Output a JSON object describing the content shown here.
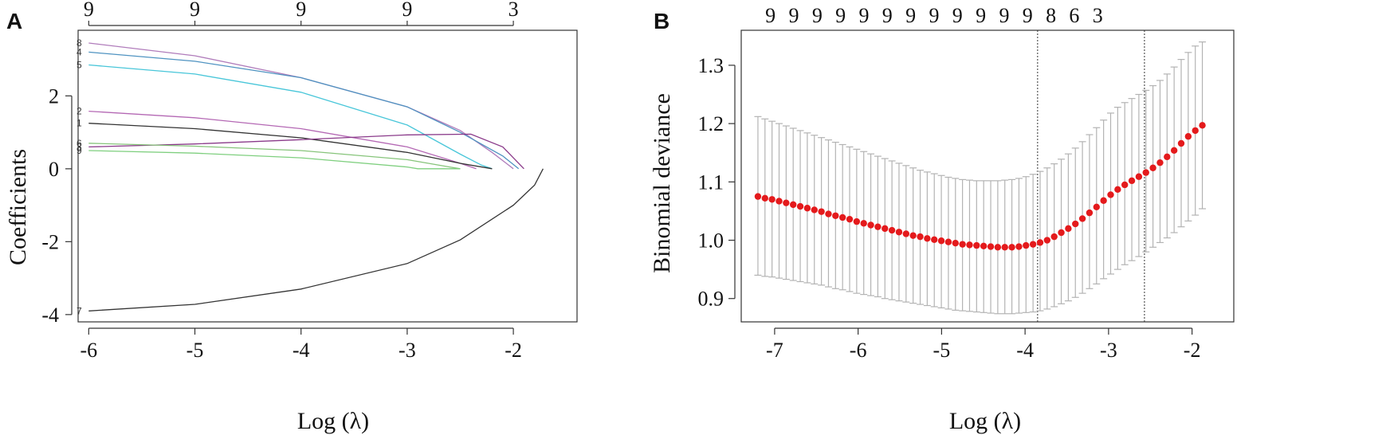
{
  "chart_data": [
    {
      "panel": "A",
      "type": "line",
      "title": "",
      "xlabel": "Log (λ)",
      "ylabel": "Coefficients",
      "xlim": [
        -6.1,
        -1.4
      ],
      "ylim": [
        -4.2,
        3.8
      ],
      "x_ticks": [
        "-6",
        "-5",
        "-4",
        "-3",
        "-2"
      ],
      "x_tick_values": [
        -6,
        -5,
        -4,
        -3,
        -2
      ],
      "y_ticks": [
        "-4",
        "-2",
        "0",
        "2"
      ],
      "y_tick_values": [
        -4,
        -2,
        0,
        2
      ],
      "top_axis": {
        "labels": [
          "9",
          "9",
          "9",
          "9",
          "3"
        ],
        "values": [
          -6,
          -5,
          -4,
          -3,
          -2
        ]
      },
      "series": [
        {
          "name": "8",
          "color": "#b07cbb",
          "x": [
            -6,
            -5,
            -4,
            -3,
            -2.5,
            -2.2,
            -2.0
          ],
          "y": [
            3.45,
            3.1,
            2.5,
            1.7,
            1.05,
            0.45,
            0
          ]
        },
        {
          "name": "4",
          "color": "#4f93c1",
          "x": [
            -6,
            -5,
            -4,
            -3,
            -2.5,
            -2.1,
            -1.95
          ],
          "y": [
            3.2,
            2.95,
            2.5,
            1.7,
            1.0,
            0.35,
            0
          ]
        },
        {
          "name": "5",
          "color": "#48c6d9",
          "x": [
            -6,
            -5,
            -4,
            -3,
            -2.5,
            -2.3,
            -2.2
          ],
          "y": [
            2.85,
            2.6,
            2.1,
            1.2,
            0.4,
            0.1,
            0
          ]
        },
        {
          "name": "2",
          "color": "#b468b4",
          "x": [
            -6,
            -5,
            -4,
            -3,
            -2.5,
            -2.35
          ],
          "y": [
            1.58,
            1.4,
            1.1,
            0.6,
            0.15,
            0
          ]
        },
        {
          "name": "1",
          "color": "#333333",
          "x": [
            -6,
            -5,
            -4,
            -3,
            -2.5,
            -2.2
          ],
          "y": [
            1.25,
            1.1,
            0.85,
            0.45,
            0.15,
            0
          ]
        },
        {
          "name": "3",
          "color": "#8a3a8a",
          "x": [
            -6,
            -5,
            -4,
            -3,
            -2.4,
            -2.1,
            -1.9
          ],
          "y": [
            0.6,
            0.68,
            0.8,
            0.93,
            0.95,
            0.6,
            0
          ]
        },
        {
          "name": "6",
          "color": "#86c47a",
          "x": [
            -6,
            -5,
            -4,
            -3,
            -2.6,
            -2.5
          ],
          "y": [
            0.7,
            0.62,
            0.5,
            0.25,
            0.05,
            0
          ]
        },
        {
          "name": "9",
          "color": "#7fcf7f",
          "x": [
            -6,
            -5,
            -4,
            -3,
            -2.9,
            -2.5
          ],
          "y": [
            0.5,
            0.43,
            0.3,
            0.05,
            0,
            0
          ]
        },
        {
          "name": "7",
          "color": "#333333",
          "x": [
            -6,
            -5,
            -4,
            -3,
            -2.5,
            -2.0,
            -1.8,
            -1.72
          ],
          "y": [
            -3.9,
            -3.72,
            -3.3,
            -2.6,
            -1.95,
            -1.0,
            -0.45,
            0
          ]
        }
      ]
    },
    {
      "panel": "B",
      "type": "scatter",
      "title": "",
      "xlabel": "Log (λ)",
      "ylabel": "Binomial deviance",
      "xlim": [
        -7.4,
        -1.5
      ],
      "ylim": [
        0.86,
        1.36
      ],
      "x_ticks": [
        "-7",
        "-6",
        "-5",
        "-4",
        "-3",
        "-2"
      ],
      "x_tick_values": [
        -7,
        -6,
        -5,
        -4,
        -3,
        -2
      ],
      "y_ticks": [
        "0.9",
        "1.0",
        "1.1",
        "1.2",
        "1.3"
      ],
      "y_tick_values": [
        0.9,
        1.0,
        1.1,
        1.2,
        1.3
      ],
      "top_axis": {
        "labels": [
          "9",
          "9",
          "9",
          "9",
          "9",
          "9",
          "9",
          "9",
          "9",
          "9",
          "9",
          "9",
          "8",
          "6",
          "3"
        ],
        "values": [
          -7.05,
          -6.77,
          -6.49,
          -6.21,
          -5.93,
          -5.65,
          -5.37,
          -5.09,
          -4.81,
          -4.53,
          -4.25,
          -3.97,
          -3.69,
          -3.41,
          -3.13
        ]
      },
      "vlines": [
        -3.85,
        -2.57
      ],
      "point_color": "#e41a1c",
      "errorbar_color": "#b3b3b3",
      "x_start": -7.2,
      "x_step": 0.0845,
      "mean": [
        1.075,
        1.072,
        1.07,
        1.067,
        1.064,
        1.061,
        1.058,
        1.055,
        1.052,
        1.049,
        1.045,
        1.042,
        1.039,
        1.036,
        1.032,
        1.029,
        1.026,
        1.023,
        1.02,
        1.017,
        1.014,
        1.011,
        1.008,
        1.006,
        1.003,
        1.001,
        0.999,
        0.997,
        0.995,
        0.993,
        0.992,
        0.991,
        0.99,
        0.989,
        0.988,
        0.988,
        0.988,
        0.989,
        0.991,
        0.993,
        0.996,
        1.0,
        1.006,
        1.013,
        1.02,
        1.028,
        1.037,
        1.047,
        1.057,
        1.068,
        1.078,
        1.087,
        1.095,
        1.102,
        1.109,
        1.116,
        1.124,
        1.133,
        1.143,
        1.154,
        1.166,
        1.178,
        1.188,
        1.197
      ],
      "upper": [
        1.212,
        1.208,
        1.204,
        1.2,
        1.196,
        1.192,
        1.188,
        1.184,
        1.18,
        1.176,
        1.172,
        1.168,
        1.164,
        1.16,
        1.156,
        1.152,
        1.148,
        1.144,
        1.14,
        1.136,
        1.132,
        1.128,
        1.124,
        1.12,
        1.117,
        1.114,
        1.111,
        1.108,
        1.106,
        1.104,
        1.103,
        1.102,
        1.102,
        1.102,
        1.102,
        1.103,
        1.104,
        1.106,
        1.109,
        1.113,
        1.118,
        1.124,
        1.131,
        1.139,
        1.148,
        1.158,
        1.169,
        1.181,
        1.193,
        1.206,
        1.218,
        1.228,
        1.236,
        1.243,
        1.25,
        1.257,
        1.265,
        1.274,
        1.285,
        1.297,
        1.31,
        1.322,
        1.333,
        1.34
      ],
      "lower": [
        0.94,
        0.938,
        0.937,
        0.935,
        0.933,
        0.931,
        0.929,
        0.927,
        0.925,
        0.923,
        0.92,
        0.917,
        0.915,
        0.912,
        0.909,
        0.907,
        0.905,
        0.903,
        0.9,
        0.898,
        0.896,
        0.894,
        0.892,
        0.89,
        0.888,
        0.886,
        0.884,
        0.882,
        0.88,
        0.879,
        0.878,
        0.877,
        0.876,
        0.875,
        0.874,
        0.874,
        0.874,
        0.875,
        0.876,
        0.877,
        0.879,
        0.882,
        0.886,
        0.891,
        0.896,
        0.902,
        0.909,
        0.917,
        0.925,
        0.934,
        0.942,
        0.95,
        0.958,
        0.965,
        0.972,
        0.98,
        0.988,
        0.996,
        1.004,
        1.013,
        1.023,
        1.033,
        1.043,
        1.054
      ]
    }
  ]
}
